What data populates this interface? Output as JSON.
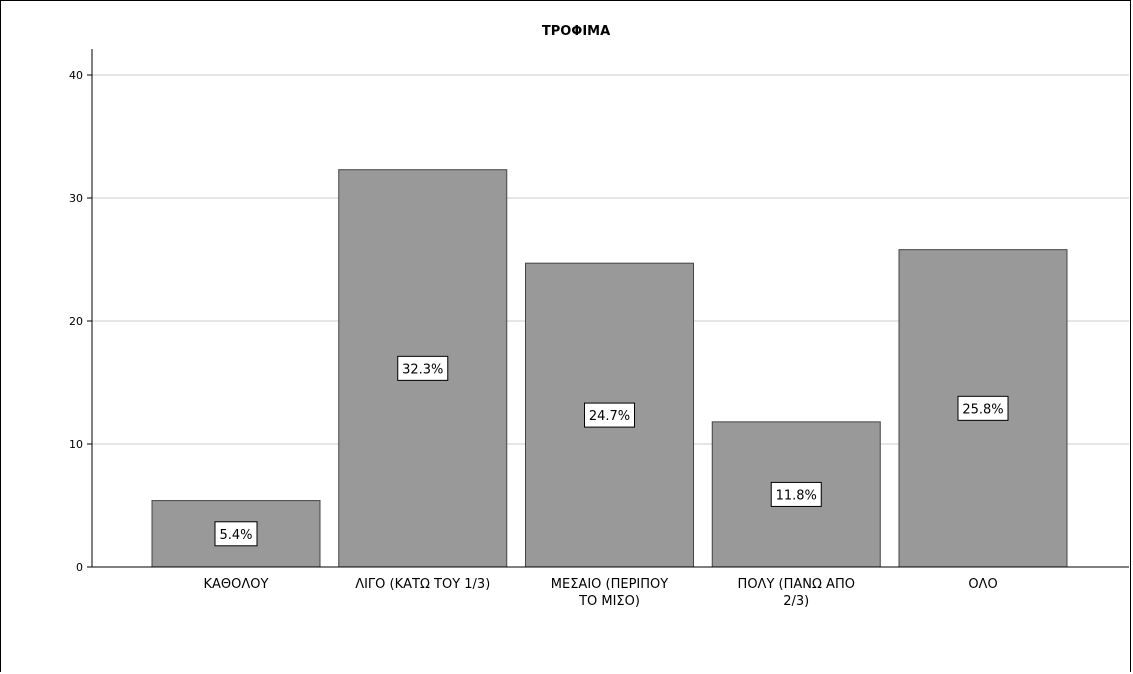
{
  "chart_data": {
    "type": "bar",
    "title": "ΤΡΟΦΙΜΑ",
    "xlabel": "",
    "ylabel": "",
    "categories": [
      [
        "ΚΑΘΟΛΟΥ"
      ],
      [
        "ΛΙΓΟ (ΚΑΤΩ ΤΟΥ 1/3)"
      ],
      [
        "ΜΕΣΑΙΟ (ΠΕΡΙΠΟΥ",
        "ΤΟ ΜΙΣΟ)"
      ],
      [
        "ΠΟΛΥ (ΠΑΝΩ ΑΠΟ",
        "2/3)"
      ],
      [
        "ΟΛΟ"
      ]
    ],
    "values": [
      5.4,
      32.3,
      24.7,
      11.8,
      25.8
    ],
    "data_labels": [
      "5.4%",
      "32.3%",
      "24.7%",
      "11.8%",
      "25.8%"
    ],
    "ylim": [
      0,
      42
    ],
    "yticks": [
      0,
      10,
      20,
      30,
      40
    ],
    "grid": true,
    "legend": "none",
    "colors": {
      "bar_fill": "#999999",
      "bar_stroke": "#444444",
      "grid": "#cccccc",
      "axis": "#000000"
    }
  }
}
